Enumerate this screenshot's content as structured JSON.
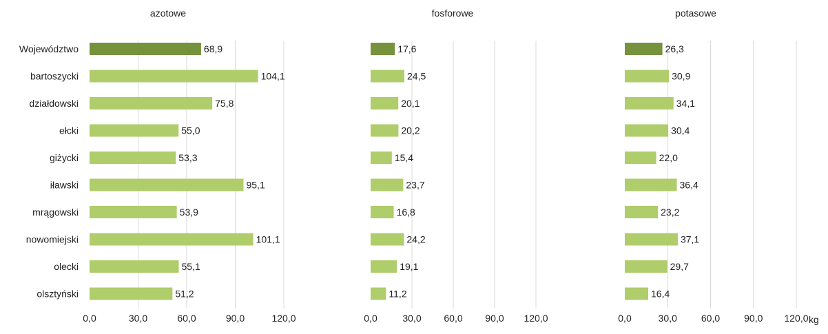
{
  "chart_data": [
    {
      "type": "bar",
      "orientation": "horizontal",
      "title": "azotowe",
      "categories": [
        "Województwo",
        "bartoszycki",
        "działdowski",
        "ełcki",
        "giżycki",
        "iławski",
        "mrągowski",
        "nowomiejski",
        "olecki",
        "olsztyński"
      ],
      "values": [
        68.9,
        104.1,
        75.8,
        55.0,
        53.3,
        95.1,
        53.9,
        101.1,
        55.1,
        51.2
      ],
      "value_labels": [
        "68,9",
        "104,1",
        "75,8",
        "55,0",
        "53,3",
        "95,1",
        "53,9",
        "101,1",
        "55,1",
        "51,2"
      ],
      "xlim": [
        0,
        120
      ],
      "xticks": [
        "0,0",
        "30,0",
        "60,0",
        "90,0",
        "120,0"
      ],
      "grid": true
    },
    {
      "type": "bar",
      "orientation": "horizontal",
      "title": "fosforowe",
      "categories": [
        "Województwo",
        "bartoszycki",
        "działdowski",
        "ełcki",
        "giżycki",
        "iławski",
        "mrągowski",
        "nowomiejski",
        "olecki",
        "olsztyński"
      ],
      "values": [
        17.6,
        24.5,
        20.1,
        20.2,
        15.4,
        23.7,
        16.8,
        24.2,
        19.1,
        11.2
      ],
      "value_labels": [
        "17,6",
        "24,5",
        "20,1",
        "20,2",
        "15,4",
        "23,7",
        "16,8",
        "24,2",
        "19,1",
        "11,2"
      ],
      "xlim": [
        0,
        120
      ],
      "xticks": [
        "0,0",
        "30,0",
        "60,0",
        "90,0",
        "120,0"
      ],
      "grid": true
    },
    {
      "type": "bar",
      "orientation": "horizontal",
      "title": "potasowe",
      "categories": [
        "Województwo",
        "bartoszycki",
        "działdowski",
        "ełcki",
        "giżycki",
        "iławski",
        "mrągowski",
        "nowomiejski",
        "olecki",
        "olsztyński"
      ],
      "values": [
        26.3,
        30.9,
        34.1,
        30.4,
        22.0,
        36.4,
        23.2,
        37.1,
        29.7,
        16.4
      ],
      "value_labels": [
        "26,3",
        "30,9",
        "34,1",
        "30,4",
        "22,0",
        "36,4",
        "23,2",
        "37,1",
        "29,7",
        "16,4"
      ],
      "xlim": [
        0,
        120
      ],
      "xticks": [
        "0,0",
        "30,0",
        "60,0",
        "90,0",
        "120,0"
      ],
      "unit": "kg",
      "grid": true
    }
  ],
  "colors": {
    "highlight_bar": "#76923c",
    "bar": "#afcd6a",
    "grid": "#d9d9d9"
  }
}
